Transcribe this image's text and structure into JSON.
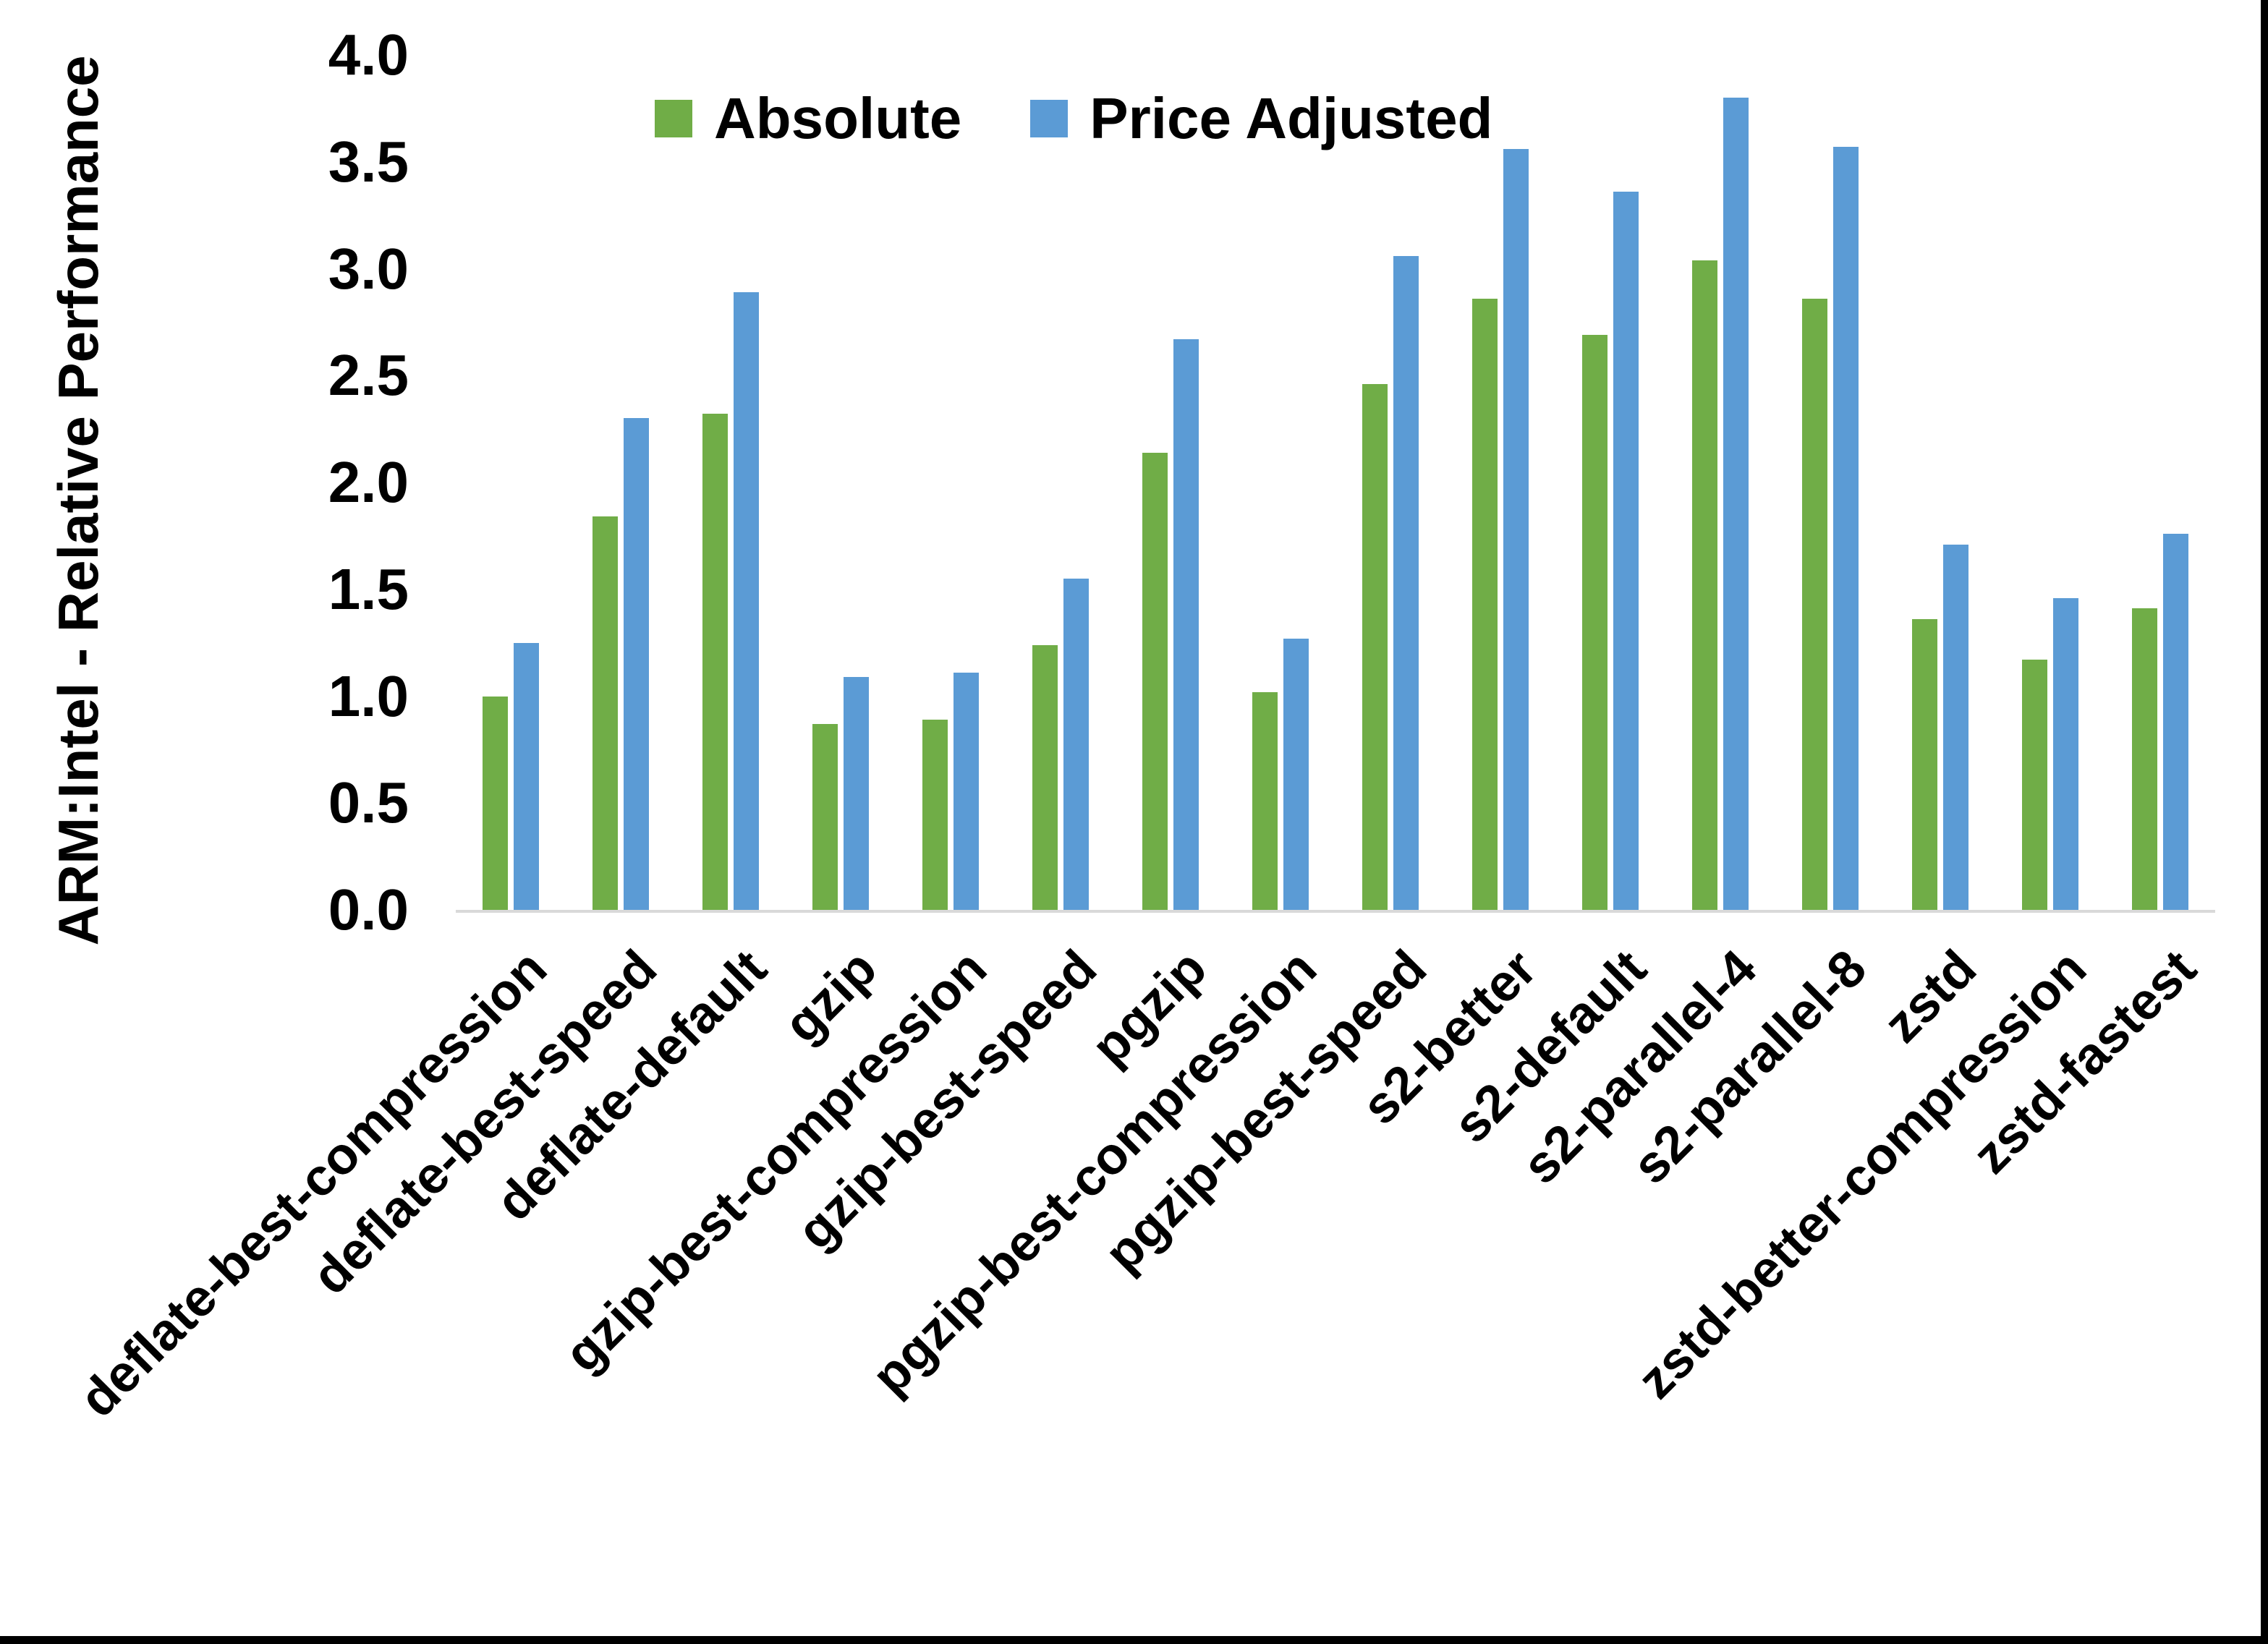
{
  "page": {
    "background": "#ffffff",
    "border_color": "#000000"
  },
  "chart_data": {
    "type": "bar",
    "title": "",
    "xlabel": "",
    "ylabel": "ARM:Intel - Relative Performance",
    "ylim": [
      0.0,
      4.0
    ],
    "ytick_step": 0.5,
    "yticks": [
      "0.0",
      "0.5",
      "1.0",
      "1.5",
      "2.0",
      "2.5",
      "3.0",
      "3.5",
      "4.0"
    ],
    "grid": false,
    "legend_position": "top-center",
    "axis_line_color": "#d9d9d9",
    "categories": [
      "deflate-best-compression",
      "deflate-best-speed",
      "deflate-default",
      "gzip",
      "gzip-best-compression",
      "gzip-best-speed",
      "pgzip",
      "pgzip-best-compression",
      "pgzip-best-speed",
      "s2-better",
      "s2-default",
      "s2-parallel-4",
      "s2-parallel-8",
      "zstd",
      "zstd-better-compression",
      "zstd-fastest"
    ],
    "series": [
      {
        "name": "Absolute",
        "color": "#70ad47",
        "values": [
          1.0,
          1.84,
          2.32,
          0.87,
          0.89,
          1.24,
          2.14,
          1.02,
          2.46,
          2.86,
          2.69,
          3.04,
          2.86,
          1.36,
          1.17,
          1.41
        ]
      },
      {
        "name": "Price Adjusted",
        "color": "#5b9bd5",
        "values": [
          1.25,
          2.3,
          2.89,
          1.09,
          1.11,
          1.55,
          2.67,
          1.27,
          3.06,
          3.56,
          3.36,
          3.8,
          3.57,
          1.71,
          1.46,
          1.76
        ]
      }
    ]
  }
}
